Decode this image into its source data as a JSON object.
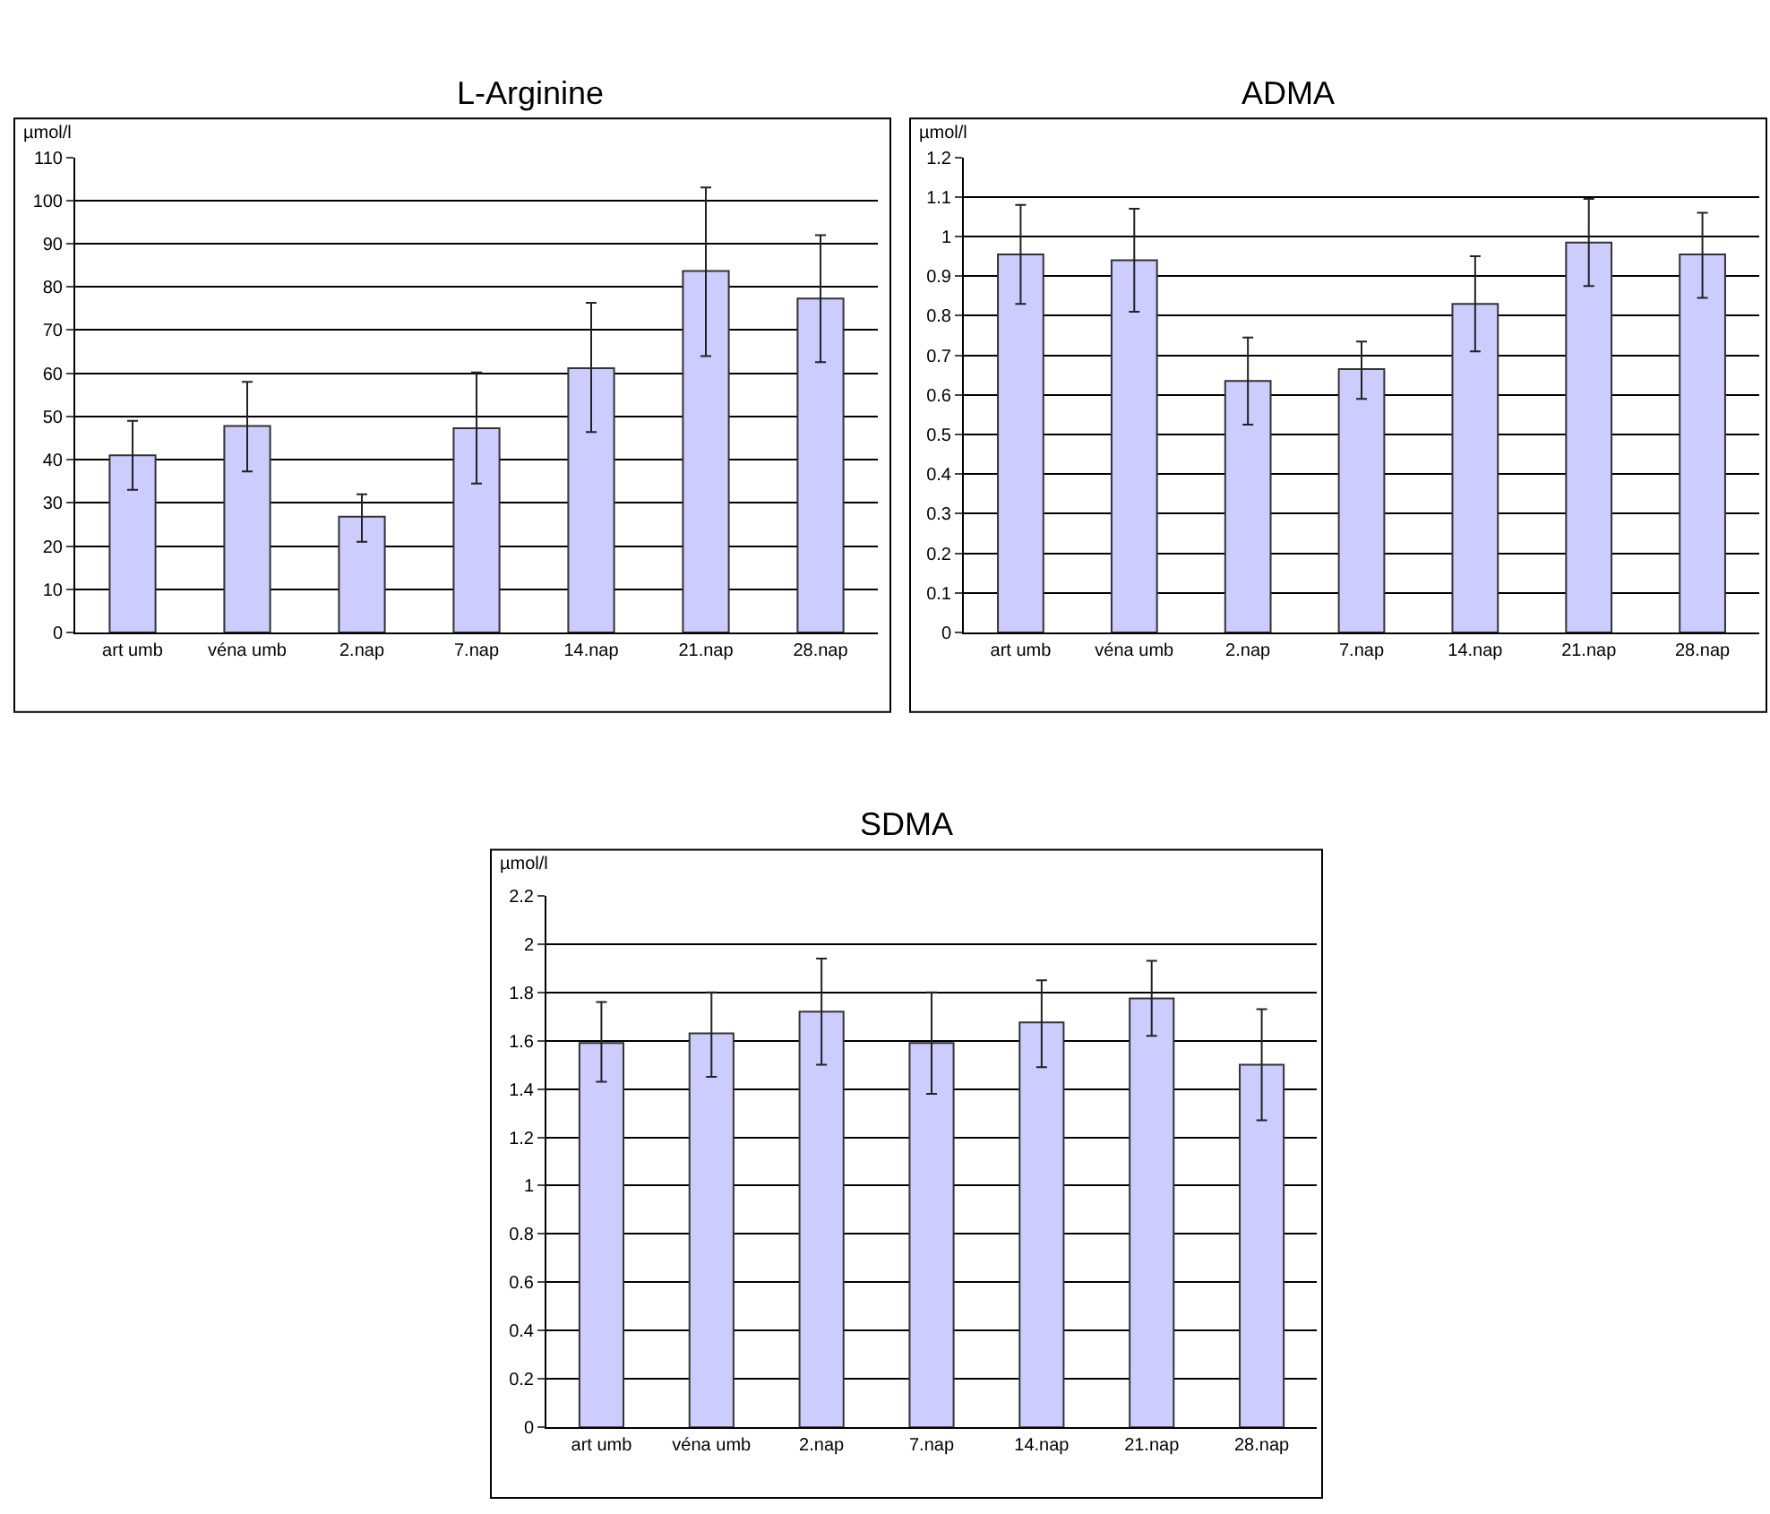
{
  "chart_data": [
    {
      "type": "bar",
      "title": "L-Arginine",
      "ylabel": "µmol/l",
      "categories": [
        "art umb",
        "véna umb",
        "2.nap",
        "7.nap",
        "14.nap",
        "21.nap",
        "28.nap"
      ],
      "values": [
        41,
        47.8,
        26.8,
        47.3,
        61.2,
        83.7,
        77.3
      ],
      "errors": [
        [
          33,
          49
        ],
        [
          37.3,
          58
        ],
        [
          21,
          32
        ],
        [
          34.5,
          60.2
        ],
        [
          46.4,
          76.3
        ],
        [
          64,
          103
        ],
        [
          62.6,
          92
        ]
      ],
      "color": "#ccccff",
      "ylim": [
        0,
        110
      ],
      "yticks": [
        0,
        10,
        20,
        30,
        40,
        50,
        60,
        70,
        80,
        90,
        100,
        110
      ],
      "grid": "y"
    },
    {
      "type": "bar",
      "title": "ADMA",
      "ylabel": "µmol/l",
      "categories": [
        "art umb",
        "véna umb",
        "2.nap",
        "7.nap",
        "14.nap",
        "21.nap",
        "28.nap"
      ],
      "values": [
        0.955,
        0.94,
        0.635,
        0.665,
        0.83,
        0.985,
        0.955
      ],
      "errors": [
        [
          0.83,
          1.08
        ],
        [
          0.81,
          1.07
        ],
        [
          0.525,
          0.745
        ],
        [
          0.59,
          0.735
        ],
        [
          0.71,
          0.95
        ],
        [
          0.875,
          1.095
        ],
        [
          0.845,
          1.06
        ]
      ],
      "color": "#ccccff",
      "ylim": [
        0,
        1.2
      ],
      "yticks": [
        0,
        0.1,
        0.2,
        0.3,
        0.4,
        0.5,
        0.6,
        0.7,
        0.8,
        0.9,
        1,
        1.1,
        1.2
      ],
      "grid": "y"
    },
    {
      "type": "bar",
      "title": "SDMA",
      "ylabel": "µmol/l",
      "categories": [
        "art umb",
        "véna umb",
        "2.nap",
        "7.nap",
        "14.nap",
        "21.nap",
        "28.nap"
      ],
      "values": [
        1.59,
        1.63,
        1.72,
        1.59,
        1.675,
        1.775,
        1.5
      ],
      "errors": [
        [
          1.43,
          1.76
        ],
        [
          1.45,
          1.8
        ],
        [
          1.5,
          1.94
        ],
        [
          1.38,
          1.8
        ],
        [
          1.49,
          1.85
        ],
        [
          1.62,
          1.93
        ],
        [
          1.27,
          1.73
        ]
      ],
      "color": "#ccccff",
      "ylim": [
        0,
        2.2
      ],
      "yticks": [
        0,
        0.2,
        0.4,
        0.6,
        0.8,
        1,
        1.2,
        1.4,
        1.6,
        1.8,
        2,
        2.2
      ],
      "grid": "y"
    }
  ]
}
